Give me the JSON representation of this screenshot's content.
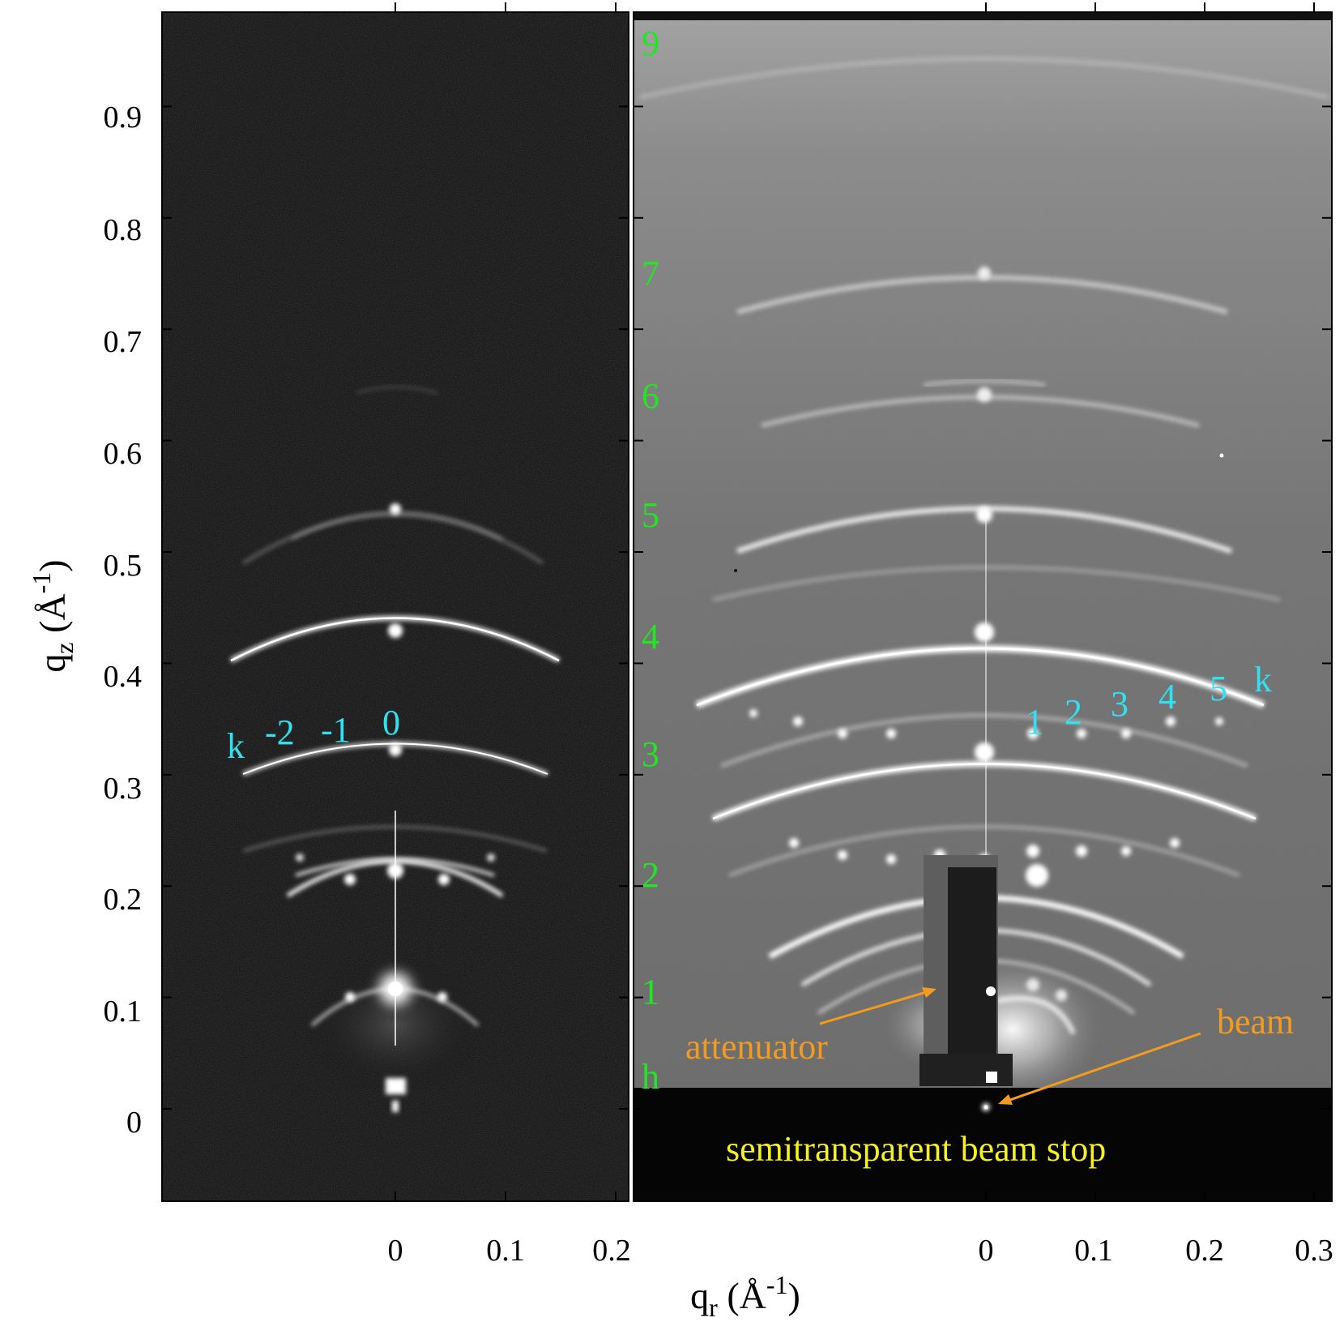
{
  "y_axis": {
    "title_main": "q",
    "title_sub": "z",
    "title_unit_open": " (Å",
    "title_unit_exp": "-1",
    "title_unit_close": ")",
    "tick_labels": [
      "0.9",
      "0.8",
      "0.7",
      "0.6",
      "0.5",
      "0.4",
      "0.3",
      "0.2",
      "0.1",
      "0"
    ],
    "tick_values": [
      0.9,
      0.8,
      0.7,
      0.6,
      0.5,
      0.4,
      0.3,
      0.2,
      0.1,
      0
    ]
  },
  "x_axis": {
    "title_main": "q",
    "title_sub": "r",
    "title_unit_open": " (Å",
    "title_unit_exp": "-1",
    "title_unit_close": ")",
    "left_tick_labels": [
      "0",
      "0.1",
      "0.2"
    ],
    "right_tick_labels": [
      "0",
      "0.1",
      "0.2",
      "0.3"
    ]
  },
  "left_panel": {
    "order_labels": [
      "k",
      "-2",
      "-1",
      "0"
    ]
  },
  "right_panel": {
    "order_labels_h": [
      "9",
      "7",
      "6",
      "5",
      "4",
      "3",
      "2",
      "1",
      "h"
    ],
    "order_labels_k": [
      "1",
      "2",
      "3",
      "4",
      "5",
      "k"
    ],
    "annotations": {
      "attenuator": "attenuator",
      "beam": "beam",
      "beam_stop": "semitransparent beam stop"
    }
  },
  "colors": {
    "cyan_labels": "#33e0f0",
    "green_labels": "#22e622",
    "orange_labels": "#f29b1f",
    "yellow_labels": "#f5f020",
    "left_background": "#0b0b0b",
    "right_background": "#7a7a7a"
  }
}
